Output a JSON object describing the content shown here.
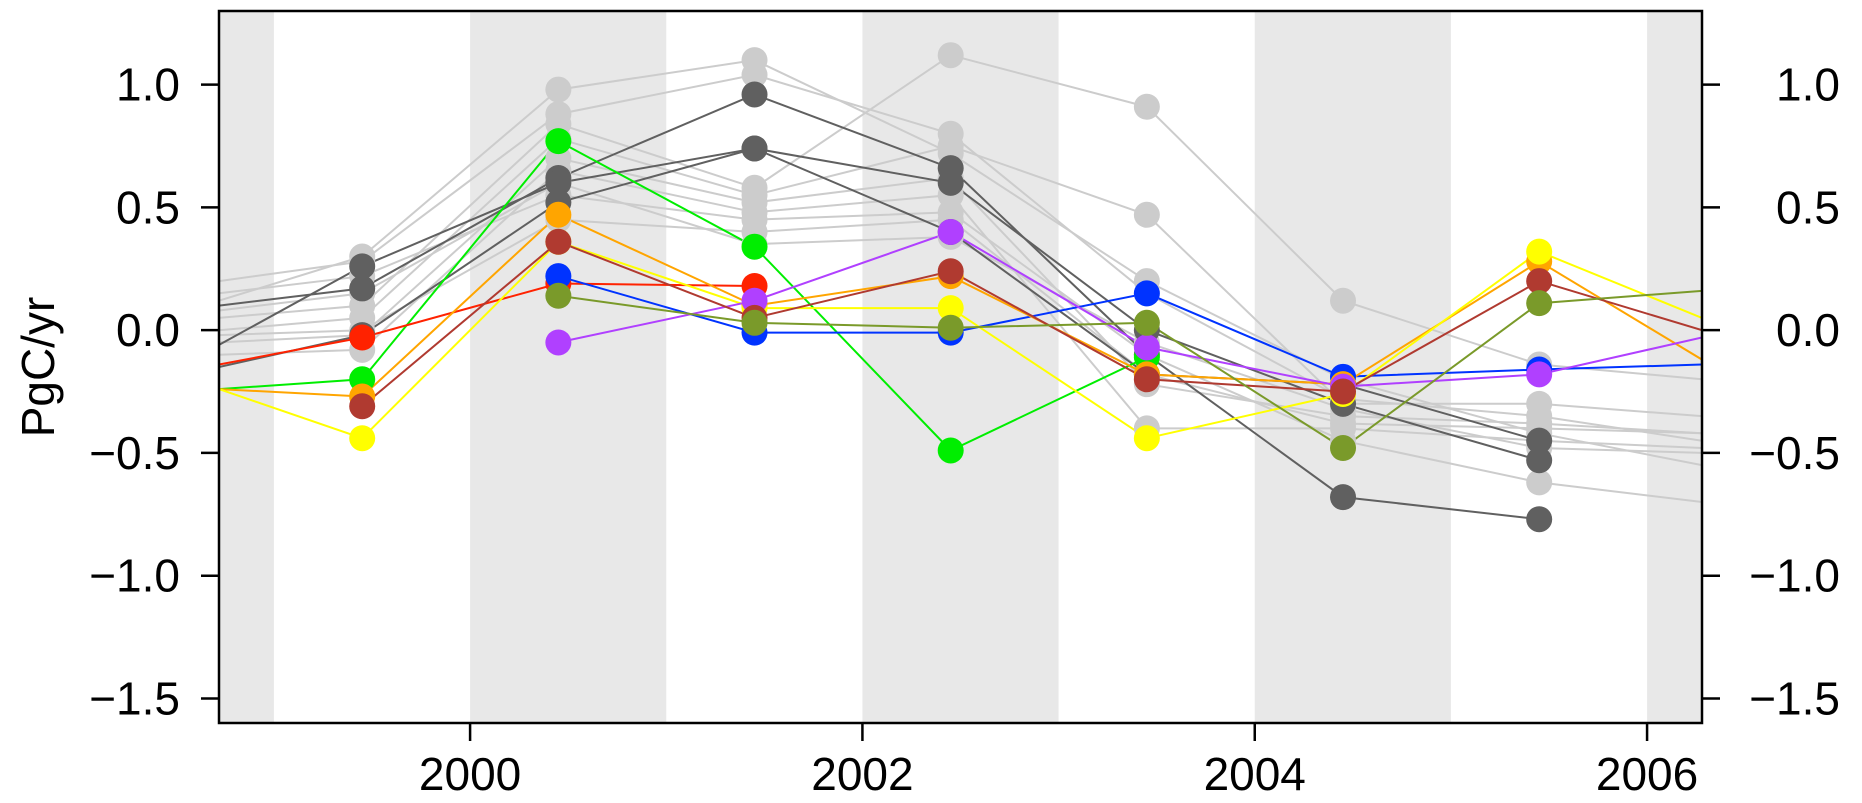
{
  "chart_data": {
    "type": "line",
    "title": "",
    "xlabel": "",
    "ylabel": "PgC/yr",
    "xlim": [
      1998.72,
      2006.28
    ],
    "ylim": [
      -1.6,
      1.3
    ],
    "x_ticks": [
      {
        "value": 2000,
        "label": "2000"
      },
      {
        "value": 2002,
        "label": "2002"
      },
      {
        "value": 2004,
        "label": "2004"
      },
      {
        "value": 2006,
        "label": "2006"
      }
    ],
    "y_ticks": [
      {
        "value": 1.0,
        "label": "1.0"
      },
      {
        "value": 0.5,
        "label": "0.5"
      },
      {
        "value": 0.0,
        "label": "0.0"
      },
      {
        "value": -0.5,
        "label": "−0.5"
      },
      {
        "value": -1.0,
        "label": "−1.0"
      },
      {
        "value": -1.5,
        "label": "−1.5"
      }
    ],
    "shaded_years": [
      [
        1998.72,
        1999
      ],
      [
        2000,
        2001
      ],
      [
        2002,
        2003
      ],
      [
        2004,
        2005
      ],
      [
        2006,
        2006.28
      ]
    ],
    "grid": false,
    "legend": "none",
    "colors": {
      "shade": "#e8e8e8",
      "light_gray": "#cccccc",
      "dark_gray": "#606060",
      "green": "#00ee00",
      "red": "#ff2200",
      "blue": "#0033ff",
      "orange": "#ffa500",
      "yellow": "#ffff00",
      "purple": "#b040ff",
      "brown": "#b03a30",
      "olive": "#7a9a2a"
    },
    "x": [
      1999.45,
      2000.45,
      2001.45,
      2002.45,
      2003.45,
      2004.45,
      2005.45
    ],
    "series": [
      {
        "color": "#cccccc",
        "lead": [
          1998.72,
          0.12
        ],
        "values": [
          0.3,
          0.98,
          1.1,
          0.72,
          0.2,
          -0.2,
          -0.42
        ],
        "trail": [
          2006.28,
          -0.55
        ]
      },
      {
        "color": "#cccccc",
        "lead": [
          1998.72,
          0.2
        ],
        "values": [
          0.28,
          0.88,
          1.04,
          0.8,
          0.15,
          -0.28,
          -0.35
        ],
        "trail": [
          2006.28,
          -0.45
        ]
      },
      {
        "color": "#cccccc",
        "lead": [
          1998.72,
          0.05
        ],
        "values": [
          0.1,
          0.84,
          0.58,
          1.12,
          0.91,
          0.12,
          -0.14
        ],
        "trail": [
          2006.28,
          -0.2
        ]
      },
      {
        "color": "#cccccc",
        "lead": [
          1998.72,
          0.0
        ],
        "values": [
          0.05,
          0.78,
          0.55,
          0.75,
          0.47,
          -0.3,
          -0.3
        ],
        "trail": [
          2006.28,
          -0.35
        ]
      },
      {
        "color": "#cccccc",
        "lead": [
          1998.72,
          -0.05
        ],
        "values": [
          -0.02,
          0.7,
          0.52,
          0.62,
          -0.22,
          -0.35,
          -0.38
        ],
        "trail": [
          2006.28,
          -0.42
        ]
      },
      {
        "color": "#cccccc",
        "lead": [
          1998.72,
          -0.1
        ],
        "values": [
          -0.08,
          0.65,
          0.48,
          0.55,
          -0.4,
          -0.4,
          -0.45
        ],
        "trail": [
          2006.28,
          -0.48
        ]
      },
      {
        "color": "#cccccc",
        "lead": [
          1998.72,
          0.15
        ],
        "values": [
          0.22,
          0.55,
          0.45,
          0.48,
          -0.1,
          -0.45,
          -0.62
        ],
        "trail": [
          2006.28,
          -0.7
        ]
      },
      {
        "color": "#cccccc",
        "lead": [
          1998.72,
          -0.02
        ],
        "values": [
          0.0,
          0.45,
          0.4,
          0.45,
          -0.18,
          -0.38,
          -0.4
        ],
        "trail": [
          2006.28,
          -0.42
        ]
      },
      {
        "color": "#cccccc",
        "lead": [
          1998.72,
          0.08
        ],
        "values": [
          0.15,
          0.6,
          0.35,
          0.38,
          -0.05,
          -0.32,
          -0.48
        ],
        "trail": [
          2006.28,
          -0.5
        ]
      },
      {
        "color": "#606060",
        "lead": [
          1998.72,
          0.1
        ],
        "values": [
          0.17,
          0.62,
          0.96,
          0.66,
          -0.1,
          -0.68,
          -0.77
        ],
        "trail": null
      },
      {
        "color": "#606060",
        "lead": [
          1998.72,
          -0.15
        ],
        "values": [
          -0.02,
          0.52,
          0.74,
          0.6,
          0.0,
          -0.3,
          -0.53
        ],
        "trail": null
      },
      {
        "color": "#606060",
        "lead": [
          1998.72,
          -0.06
        ],
        "values": [
          0.26,
          0.6,
          0.74,
          0.4,
          -0.18,
          -0.22,
          -0.45
        ],
        "trail": null
      },
      {
        "color": "#00ee00",
        "lead": [
          1998.72,
          -0.24
        ],
        "values": [
          -0.2,
          0.77,
          0.34,
          -0.49,
          -0.11,
          null,
          null
        ],
        "trail": null
      },
      {
        "color": "#ff2200",
        "lead": [
          1998.72,
          -0.14
        ],
        "values": [
          -0.03,
          0.19,
          0.18,
          null,
          null,
          null,
          null
        ],
        "trail": null
      },
      {
        "color": "#0033ff",
        "lead": null,
        "values": [
          null,
          0.22,
          -0.01,
          -0.01,
          0.15,
          -0.19,
          -0.16
        ],
        "trail": [
          2006.28,
          -0.14
        ]
      },
      {
        "color": "#ffa500",
        "lead": [
          1998.72,
          -0.24
        ],
        "values": [
          -0.27,
          0.47,
          0.1,
          0.22,
          -0.18,
          -0.22,
          0.28
        ],
        "trail": [
          2006.28,
          -0.12
        ]
      },
      {
        "color": "#ffff00",
        "lead": [
          1998.72,
          -0.24
        ],
        "values": [
          -0.44,
          0.36,
          0.09,
          0.09,
          -0.44,
          -0.26,
          0.32
        ],
        "trail": [
          2006.28,
          0.05
        ]
      },
      {
        "color": "#b040ff",
        "lead": null,
        "values": [
          null,
          -0.05,
          0.12,
          0.4,
          -0.07,
          -0.23,
          -0.18
        ],
        "trail": [
          2006.28,
          -0.03
        ]
      },
      {
        "color": "#b03a30",
        "lead": null,
        "values": [
          -0.31,
          0.36,
          0.05,
          0.24,
          -0.2,
          -0.25,
          0.2
        ],
        "trail": [
          2006.28,
          0.0
        ]
      },
      {
        "color": "#7a9a2a",
        "lead": null,
        "values": [
          null,
          0.14,
          0.03,
          0.01,
          0.03,
          -0.48,
          0.11
        ],
        "trail": [
          2006.28,
          0.16
        ]
      }
    ]
  }
}
